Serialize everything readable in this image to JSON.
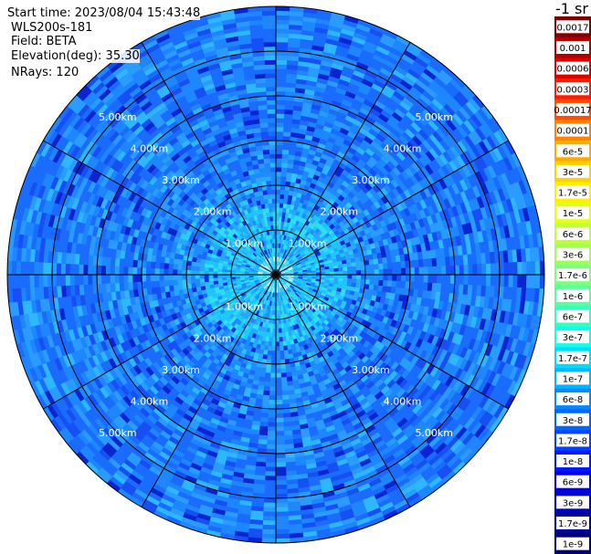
{
  "info": {
    "start_time": "Start time: 2023/08/04 15:43:48",
    "instrument": "WLS200s-181",
    "field": "Field: BETA",
    "elevation": "Elevation(deg): 35.30",
    "nrays": "NRays: 120"
  },
  "chart_data": {
    "type": "heatmap",
    "projection": "polar",
    "field": "BETA",
    "nrays": 120,
    "elevation_deg": 35.3,
    "max_range_km": 6.0,
    "range_rings_km": [
      1,
      2,
      3,
      4,
      5
    ],
    "ring_labels": [
      "1.00km",
      "2.00km",
      "3.00km",
      "4.00km",
      "5.00km"
    ],
    "spoke_angles_deg": [
      0,
      30,
      60,
      90,
      120,
      150,
      180,
      210,
      240,
      270,
      300,
      330
    ],
    "colorbar": {
      "title": "-1 sr",
      "labels": [
        "0.0017",
        "0.001",
        "0.0006",
        "0.0003",
        "0.00017",
        "0.0001",
        "6e-5",
        "3e-5",
        "1.7e-5",
        "1e-5",
        "6e-6",
        "3e-6",
        "1.7e-6",
        "1e-6",
        "6e-7",
        "3e-7",
        "1.7e-7",
        "1e-7",
        "6e-8",
        "3e-8",
        "1.7e-8",
        "1e-8",
        "6e-9",
        "3e-9",
        "1.7e-9",
        "1e-9"
      ],
      "colors": [
        "#7f0000",
        "#b00000",
        "#de0000",
        "#ff1a00",
        "#ff4e00",
        "#ff8200",
        "#ffaa00",
        "#ffd100",
        "#fff000",
        "#e5ff10",
        "#c0ff37",
        "#a0ff57",
        "#7cff7c",
        "#57ffa0",
        "#33ffc4",
        "#10ffe7",
        "#00dcff",
        "#00b4ff",
        "#008cff",
        "#0064ff",
        "#0040ff",
        "#0018ff",
        "#0000e8",
        "#0000c0",
        "#00009a",
        "#000070"
      ]
    },
    "dominant_values": {
      "near_center_km": [
        0,
        1.5
      ],
      "near_center_level": "6e-8 to 1.7e-7",
      "far_field_level": "1.7e-8 to 3e-8"
    }
  }
}
